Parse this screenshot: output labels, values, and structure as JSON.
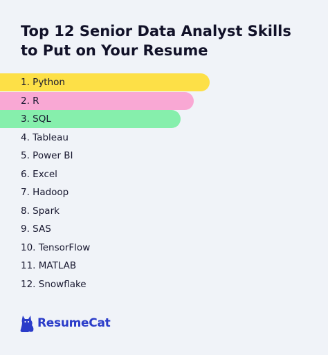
{
  "title": "Top 12 Senior Data Analyst Skills to Put on Your Resume",
  "skills": [
    {
      "label": "1. Python",
      "highlight": "#fde047",
      "fill": 0.64
    },
    {
      "label": "2. R",
      "highlight": "#f9a8d4",
      "fill": 0.59
    },
    {
      "label": "3. SQL",
      "highlight": "#86efac",
      "fill": 0.55
    },
    {
      "label": "4. Tableau"
    },
    {
      "label": "5. Power BI"
    },
    {
      "label": "6. Excel"
    },
    {
      "label": "7. Hadoop"
    },
    {
      "label": "8. Spark"
    },
    {
      "label": "9. SAS"
    },
    {
      "label": "10. TensorFlow"
    },
    {
      "label": "11. MATLAB"
    },
    {
      "label": "12. Snowflake"
    }
  ],
  "brand": {
    "name": "ResumeCat",
    "icon": "cat-icon",
    "color": "#2b3cc9"
  }
}
